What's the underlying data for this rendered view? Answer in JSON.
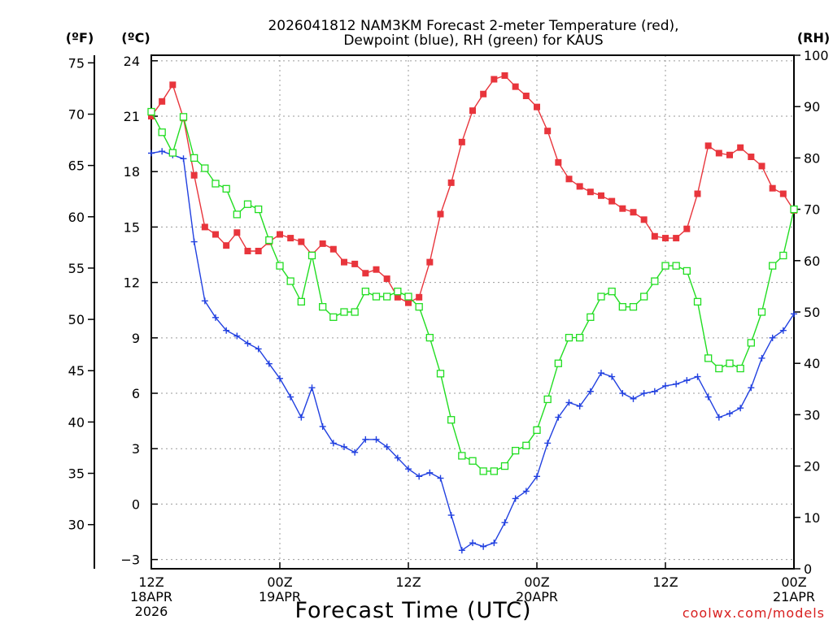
{
  "chart_data": {
    "type": "line",
    "title": [
      "2026041812 NAM3KM Forecast 2-meter Temperature (red),",
      "Dewpoint (blue), RH (green) for KAUS"
    ],
    "xlabel": "Forecast Time (UTC)",
    "credit": "coolwx.com/models",
    "unit_labels": {
      "f": "(ºF)",
      "c": "(ºC)",
      "rh": "(RH)"
    },
    "x_ticks": [
      {
        "hour": 0,
        "lines": [
          "12Z",
          "18APR",
          "2026"
        ]
      },
      {
        "hour": 12,
        "lines": [
          "00Z",
          "19APR"
        ]
      },
      {
        "hour": 24,
        "lines": [
          "12Z"
        ]
      },
      {
        "hour": 36,
        "lines": [
          "00Z",
          "20APR"
        ]
      },
      {
        "hour": 48,
        "lines": [
          "12Z"
        ]
      },
      {
        "hour": 60,
        "lines": [
          "00Z",
          "21APR"
        ]
      }
    ],
    "xlim": [
      0,
      60
    ],
    "c_axis": {
      "ylim": [
        -3.5,
        24.3
      ],
      "ticks": [
        "24",
        "21",
        "18",
        "15",
        "12",
        "9",
        "6",
        "3",
        "0",
        "−3"
      ]
    },
    "f_axis": {
      "ticks": [
        "75",
        "70",
        "65",
        "60",
        "55",
        "50",
        "45",
        "40",
        "35",
        "30"
      ]
    },
    "rh_axis": {
      "ylim": [
        0,
        100
      ],
      "ticks": [
        "100",
        "90",
        "80",
        "70",
        "60",
        "50",
        "40",
        "30",
        "20",
        "10",
        "0"
      ]
    },
    "series": [
      {
        "name": "Temperature",
        "unit": "C",
        "color": "#e8353c",
        "marker": "filled-square",
        "x": [
          0,
          1,
          2,
          3,
          4,
          5,
          6,
          7,
          8,
          9,
          10,
          11,
          12,
          13,
          14,
          15,
          16,
          17,
          18,
          19,
          20,
          21,
          22,
          23,
          24,
          25,
          26,
          27,
          28,
          29,
          30,
          31,
          32,
          33,
          34,
          35,
          36,
          37,
          38,
          39,
          40,
          41,
          42,
          43,
          44,
          45,
          46,
          47,
          48,
          49,
          50,
          51,
          52,
          53,
          54,
          55,
          56,
          57,
          58,
          59,
          60
        ],
        "values": [
          21.0,
          21.8,
          22.7,
          20.9,
          17.8,
          15.0,
          14.6,
          14.0,
          14.7,
          13.7,
          13.7,
          14.2,
          14.6,
          14.4,
          14.2,
          13.5,
          14.1,
          13.8,
          13.1,
          13.0,
          12.5,
          12.7,
          12.2,
          11.2,
          10.9,
          11.2,
          13.1,
          15.7,
          17.4,
          19.6,
          21.3,
          22.2,
          23.0,
          23.2,
          22.6,
          22.1,
          21.5,
          20.2,
          18.5,
          17.6,
          17.2,
          16.9,
          16.7,
          16.4,
          16.0,
          15.8,
          15.4,
          14.5,
          14.4,
          14.4,
          14.9,
          16.8,
          19.4,
          19.0,
          18.9,
          19.3,
          18.8,
          18.3,
          17.1,
          16.8,
          15.9
        ]
      },
      {
        "name": "Dewpoint",
        "unit": "C",
        "color": "#2140e0",
        "marker": "plus",
        "x": [
          0,
          1,
          2,
          3,
          4,
          5,
          6,
          7,
          8,
          9,
          10,
          11,
          12,
          13,
          14,
          15,
          16,
          17,
          18,
          19,
          20,
          21,
          22,
          23,
          24,
          25,
          26,
          27,
          28,
          29,
          30,
          31,
          32,
          33,
          34,
          35,
          36,
          37,
          38,
          39,
          40,
          41,
          42,
          43,
          44,
          45,
          46,
          47,
          48,
          49,
          50,
          51,
          52,
          53,
          54,
          55,
          56,
          57,
          58,
          59,
          60
        ],
        "values": [
          19.0,
          19.1,
          18.9,
          18.7,
          14.2,
          11.0,
          10.1,
          9.4,
          9.1,
          8.7,
          8.4,
          7.6,
          6.8,
          5.8,
          4.7,
          6.3,
          4.2,
          3.3,
          3.1,
          2.8,
          3.5,
          3.5,
          3.1,
          2.5,
          1.9,
          1.5,
          1.7,
          1.4,
          -0.6,
          -2.5,
          -2.1,
          -2.3,
          -2.1,
          -1.0,
          0.3,
          0.7,
          1.5,
          3.3,
          4.7,
          5.5,
          5.3,
          6.1,
          7.1,
          6.9,
          6.0,
          5.7,
          6.0,
          6.1,
          6.4,
          6.5,
          6.7,
          6.9,
          5.8,
          4.7,
          4.9,
          5.2,
          6.3,
          7.9,
          9.0,
          9.4,
          10.3
        ]
      },
      {
        "name": "RH",
        "unit": "%",
        "color": "#22dd22",
        "marker": "open-square",
        "x": [
          0,
          1,
          2,
          3,
          4,
          5,
          6,
          7,
          8,
          9,
          10,
          11,
          12,
          13,
          14,
          15,
          16,
          17,
          18,
          19,
          20,
          21,
          22,
          23,
          24,
          25,
          26,
          27,
          28,
          29,
          30,
          31,
          32,
          33,
          34,
          35,
          36,
          37,
          38,
          39,
          40,
          41,
          42,
          43,
          44,
          45,
          46,
          47,
          48,
          49,
          50,
          51,
          52,
          53,
          54,
          55,
          56,
          57,
          58,
          59,
          60
        ],
        "values": [
          89,
          85,
          81,
          88,
          80,
          78,
          75,
          74,
          69,
          71,
          70,
          64,
          59,
          56,
          52,
          61,
          51,
          49,
          50,
          50,
          54,
          53,
          53,
          54,
          53,
          51,
          45,
          38,
          29,
          22,
          21,
          19,
          19,
          20,
          23,
          24,
          27,
          33,
          40,
          45,
          45,
          49,
          53,
          54,
          51,
          51,
          53,
          56,
          59,
          59,
          58,
          52,
          41,
          39,
          40,
          39,
          44,
          50,
          59,
          61,
          70
        ]
      }
    ]
  }
}
